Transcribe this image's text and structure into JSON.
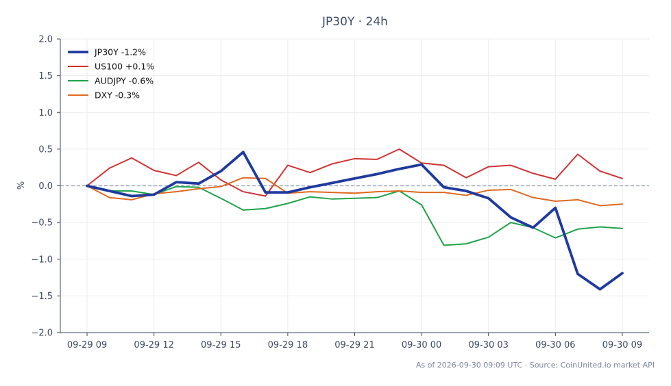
{
  "chart_data": {
    "type": "line",
    "title": "JP30Y · 24h",
    "ylabel": "%",
    "xlabel": "",
    "ylim": [
      -2.0,
      2.0
    ],
    "yticks": [
      "2.0",
      "1.5",
      "1.0",
      "0.5",
      "0.0",
      "−0.5",
      "−1.0",
      "−1.5",
      "−2.0"
    ],
    "ytick_values": [
      2.0,
      1.5,
      1.0,
      0.5,
      0.0,
      -0.5,
      -1.0,
      -1.5,
      -2.0
    ],
    "x_hours": [
      0,
      1,
      2,
      3,
      4,
      5,
      6,
      7,
      8,
      9,
      10,
      11,
      12,
      13,
      14,
      15,
      16,
      17,
      18,
      19,
      20,
      21,
      22,
      23,
      24
    ],
    "xticks": [
      "09-29 09",
      "09-29 12",
      "09-29 15",
      "09-29 18",
      "09-29 21",
      "09-30 00",
      "09-30 03",
      "09-30 06",
      "09-30 09"
    ],
    "xtick_hours": [
      0,
      3,
      6,
      9,
      12,
      15,
      18,
      21,
      24
    ],
    "xlim_hours": [
      -1.2,
      25.2
    ],
    "grid": true,
    "legend_position": "top-left",
    "zero_line": true,
    "series": [
      {
        "name": "JP30Y -1.2%",
        "color": "#1f3a9e",
        "width": 3.8,
        "values": [
          0.0,
          -0.07,
          -0.14,
          -0.12,
          0.05,
          0.03,
          0.2,
          0.46,
          -0.09,
          -0.09,
          -0.02,
          0.04,
          0.1,
          0.16,
          0.23,
          0.29,
          -0.02,
          -0.07,
          -0.17,
          -0.43,
          -0.57,
          -0.3,
          -1.2,
          -1.41,
          -1.19
        ]
      },
      {
        "name": "US100 +0.1%",
        "color": "#d03232",
        "width": 2,
        "values": [
          0.0,
          0.24,
          0.38,
          0.21,
          0.14,
          0.32,
          0.08,
          -0.08,
          -0.14,
          0.28,
          0.18,
          0.3,
          0.37,
          0.36,
          0.5,
          0.31,
          0.28,
          0.11,
          0.26,
          0.28,
          0.17,
          0.09,
          0.43,
          0.2,
          0.1
        ]
      },
      {
        "name": "AUDJPY -0.6%",
        "color": "#1ea34a",
        "width": 2,
        "values": [
          0.0,
          -0.07,
          -0.07,
          -0.12,
          -0.01,
          -0.02,
          -0.17,
          -0.33,
          -0.31,
          -0.24,
          -0.15,
          -0.18,
          -0.17,
          -0.16,
          -0.07,
          -0.26,
          -0.81,
          -0.79,
          -0.7,
          -0.5,
          -0.57,
          -0.71,
          -0.59,
          -0.56,
          -0.58
        ]
      },
      {
        "name": "DXY -0.3%",
        "color": "#e0691e",
        "width": 2,
        "values": [
          0.0,
          -0.16,
          -0.19,
          -0.11,
          -0.08,
          -0.04,
          -0.01,
          0.11,
          0.1,
          -0.1,
          -0.08,
          -0.09,
          -0.1,
          -0.08,
          -0.07,
          -0.09,
          -0.09,
          -0.13,
          -0.06,
          -0.05,
          -0.16,
          -0.21,
          -0.19,
          -0.27,
          -0.25
        ]
      }
    ],
    "footer": "As of 2026-09-30 09:09 UTC · Source: CoinUnited.io market API"
  },
  "colors": {
    "axis": "#3a4a63",
    "grid": "#ececec",
    "zero_line": "#8a98b3",
    "text": "#3a4a63"
  }
}
